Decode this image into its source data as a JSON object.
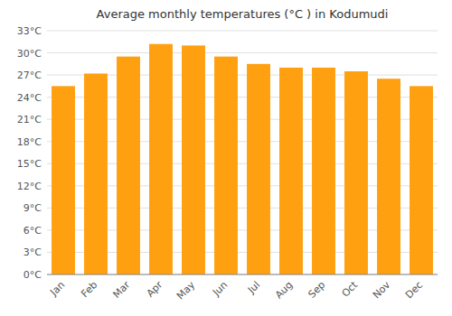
{
  "chart_data": {
    "type": "bar",
    "title": "Average monthly temperatures (°C ) in Kodumudi",
    "categories": [
      "Jan",
      "Feb",
      "Mar",
      "Apr",
      "May",
      "Jun",
      "Jul",
      "Aug",
      "Sep",
      "Oct",
      "Nov",
      "Dec"
    ],
    "values": [
      25.5,
      27.2,
      29.5,
      31.2,
      31.0,
      29.5,
      28.5,
      28.0,
      28.0,
      27.5,
      26.5,
      25.5
    ],
    "color": "#FFA010",
    "ylim": [
      0,
      33
    ],
    "yticks": [
      {
        "value": 0,
        "label": "0°C"
      },
      {
        "value": 3,
        "label": "3°C"
      },
      {
        "value": 6,
        "label": "6°C"
      },
      {
        "value": 9,
        "label": "9°C"
      },
      {
        "value": 12,
        "label": "12°C"
      },
      {
        "value": 15,
        "label": "15°C"
      },
      {
        "value": 18,
        "label": "18°C"
      },
      {
        "value": 21,
        "label": "21°C"
      },
      {
        "value": 24,
        "label": "24°C"
      },
      {
        "value": 27,
        "label": "27°C"
      },
      {
        "value": 30,
        "label": "30°C"
      },
      {
        "value": 33,
        "label": "33°C"
      }
    ],
    "grid": true
  }
}
